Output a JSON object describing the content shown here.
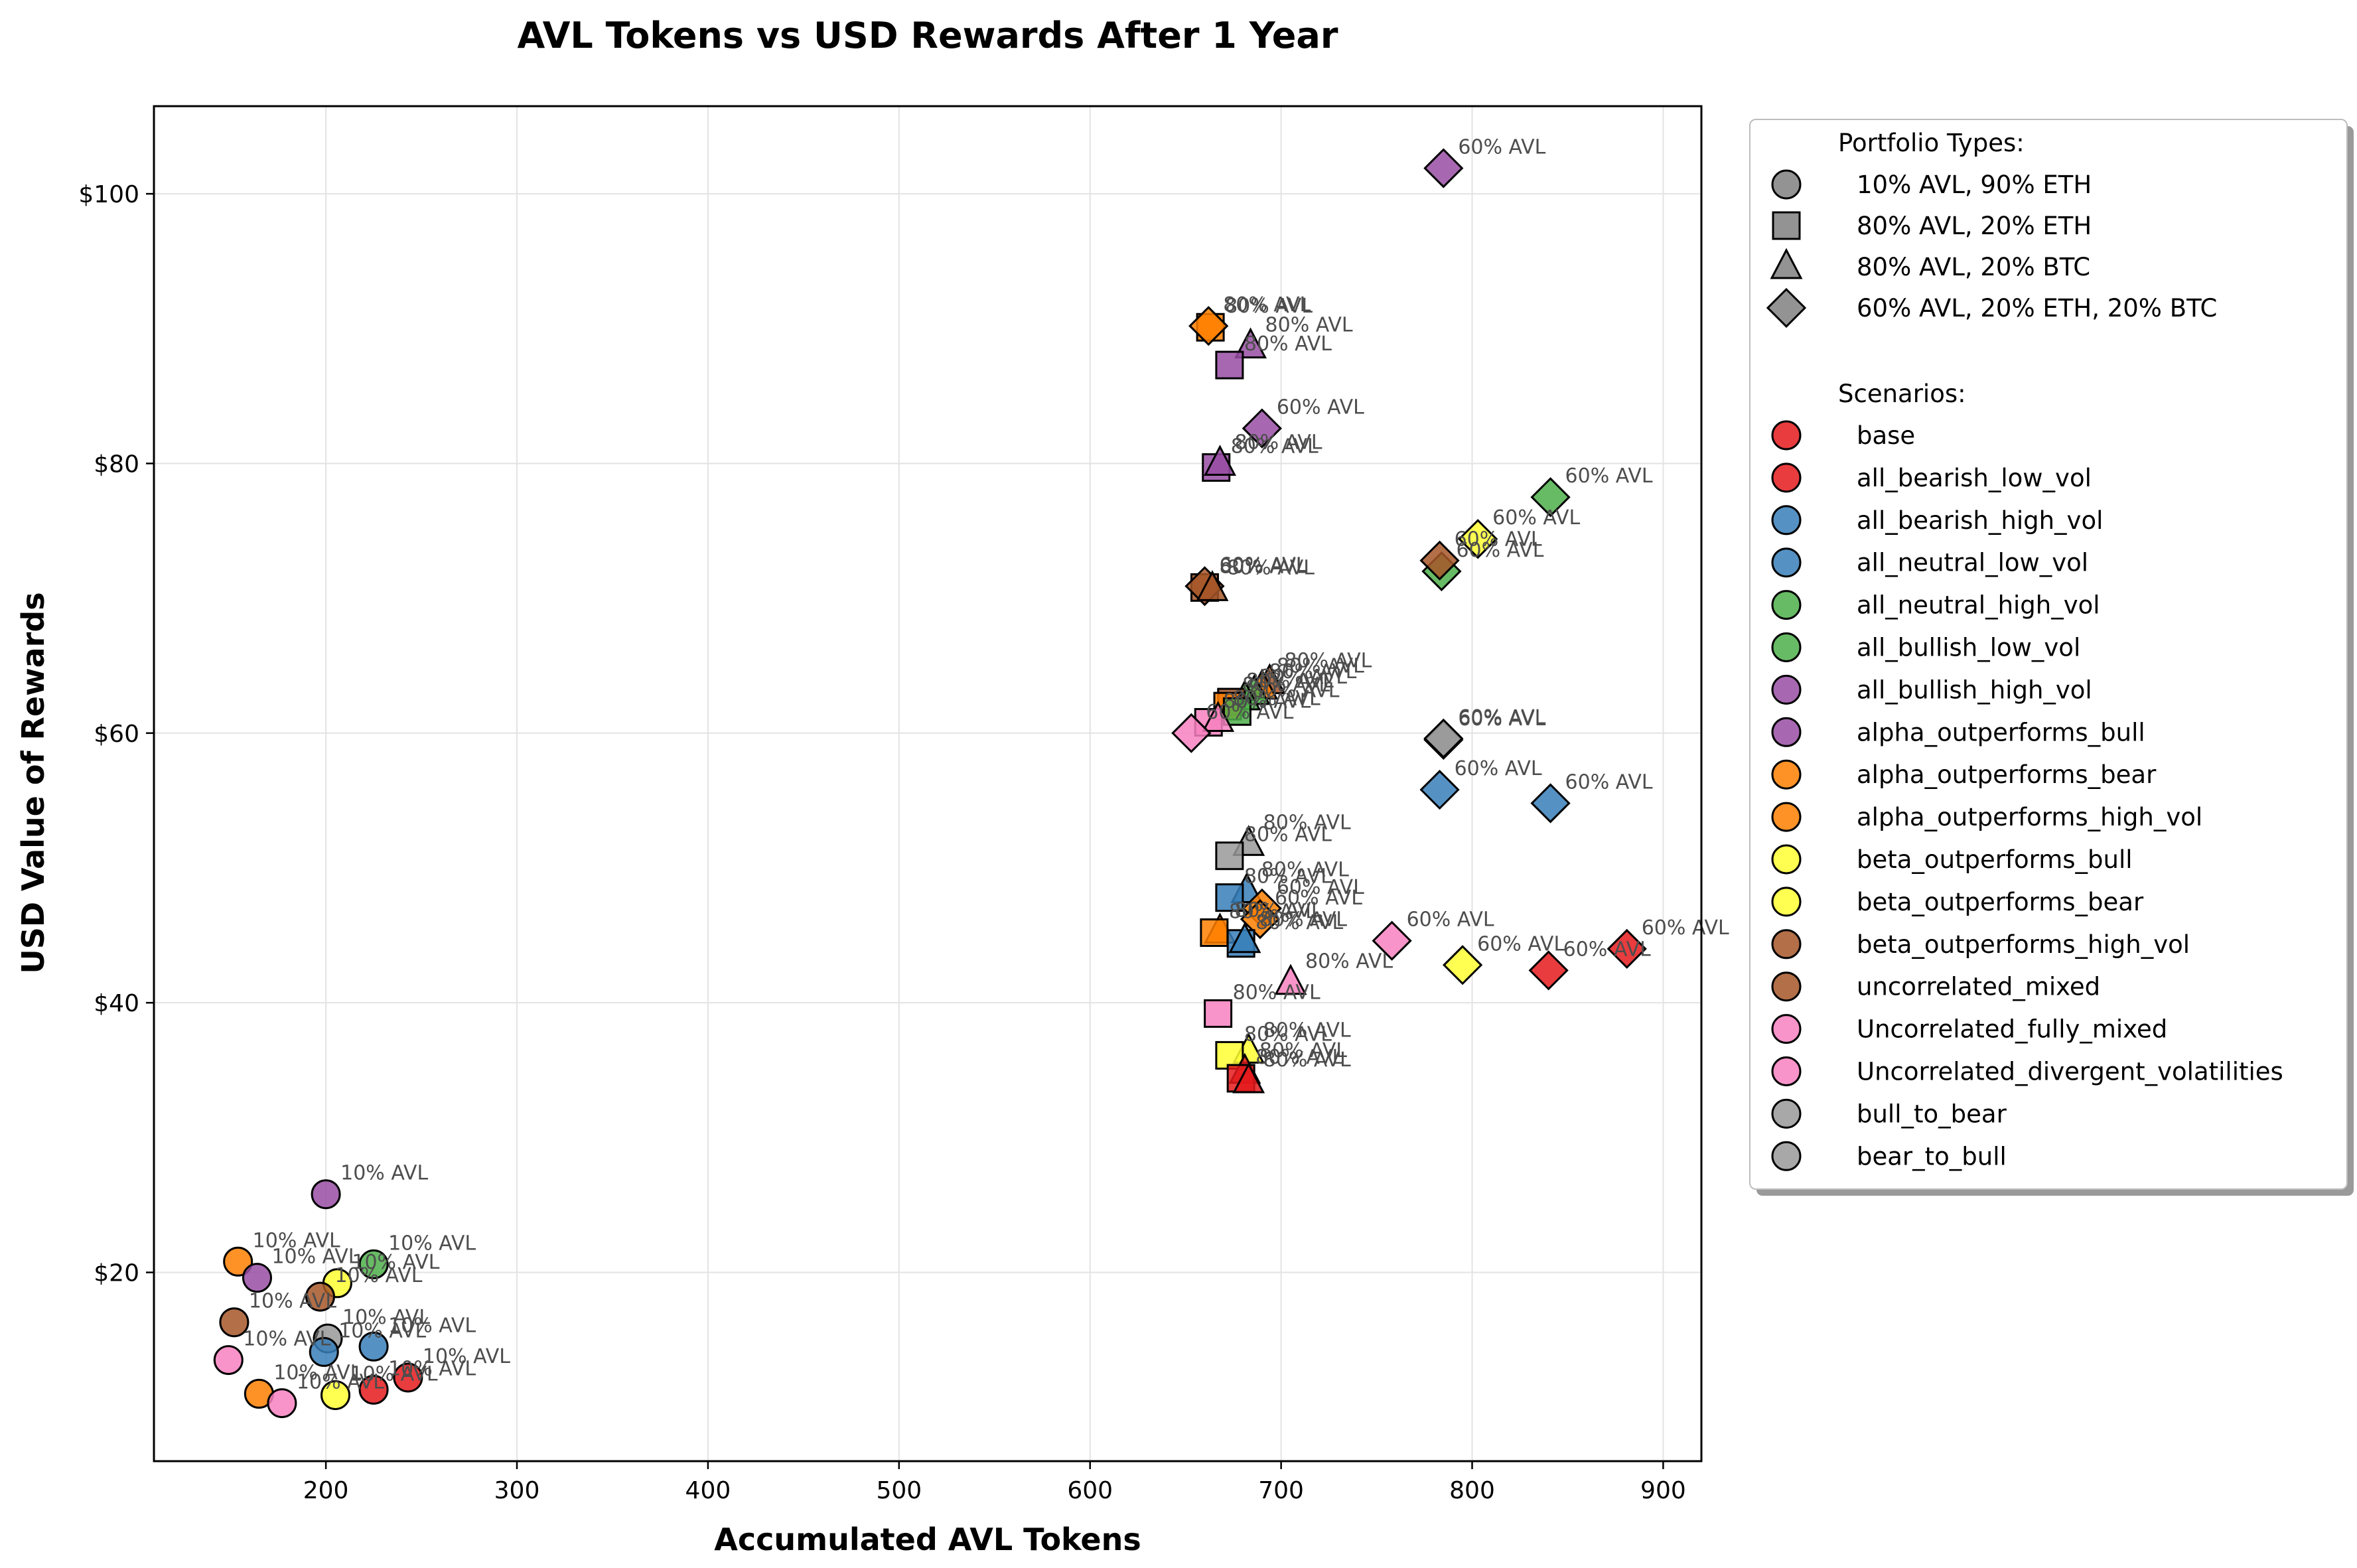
{
  "chart_data": {
    "type": "scatter",
    "title": "AVL Tokens vs USD Rewards After 1 Year",
    "xlabel": "Accumulated AVL Tokens",
    "ylabel": "USD Value of Rewards",
    "xlim": [
      110,
      920
    ],
    "ylim": [
      6,
      106.5
    ],
    "x_ticks": [
      200,
      300,
      400,
      500,
      600,
      700,
      800,
      900
    ],
    "y_ticks": [
      20,
      40,
      60,
      80,
      100
    ],
    "y_tick_prefix": "$",
    "grid": true,
    "legend_position": "outside-right",
    "legend": {
      "portfolio_title": "Portfolio Types:",
      "portfolios": [
        {
          "shape": "circle",
          "label": "10% AVL, 90% ETH"
        },
        {
          "shape": "square",
          "label": "80% AVL, 20% ETH"
        },
        {
          "shape": "triangle",
          "label": "80% AVL, 20% BTC"
        },
        {
          "shape": "diamond",
          "label": "60% AVL, 20% ETH, 20% BTC"
        }
      ],
      "scenario_title": "Scenarios:",
      "scenarios": [
        {
          "name": "base",
          "color": "#e41a1c"
        },
        {
          "name": "all_bearish_low_vol",
          "color": "#e41a1c"
        },
        {
          "name": "all_bearish_high_vol",
          "color": "#377eb8"
        },
        {
          "name": "all_neutral_low_vol",
          "color": "#377eb8"
        },
        {
          "name": "all_neutral_high_vol",
          "color": "#4daf4a"
        },
        {
          "name": "all_bullish_low_vol",
          "color": "#4daf4a"
        },
        {
          "name": "all_bullish_high_vol",
          "color": "#984ea3"
        },
        {
          "name": "alpha_outperforms_bull",
          "color": "#984ea3"
        },
        {
          "name": "alpha_outperforms_bear",
          "color": "#ff7f00"
        },
        {
          "name": "alpha_outperforms_high_vol",
          "color": "#ff7f00"
        },
        {
          "name": "beta_outperforms_bull",
          "color": "#ffff33"
        },
        {
          "name": "beta_outperforms_bear",
          "color": "#ffff33"
        },
        {
          "name": "beta_outperforms_high_vol",
          "color": "#a65628"
        },
        {
          "name": "uncorrelated_mixed",
          "color": "#a65628"
        },
        {
          "name": "Uncorrelated_fully_mixed",
          "color": "#f781bf"
        },
        {
          "name": "Uncorrelated_divergent_volatilities",
          "color": "#f781bf"
        },
        {
          "name": "bull_to_bear",
          "color": "#999999"
        },
        {
          "name": "bear_to_bull",
          "color": "#999999"
        }
      ]
    },
    "points": [
      {
        "x": 200,
        "y": 25.8,
        "shape": "circle",
        "color": "#984ea3",
        "label": "10% AVL"
      },
      {
        "x": 154,
        "y": 20.8,
        "shape": "circle",
        "color": "#ff7f00",
        "label": "10% AVL"
      },
      {
        "x": 164,
        "y": 19.6,
        "shape": "circle",
        "color": "#984ea3",
        "label": "10% AVL"
      },
      {
        "x": 225,
        "y": 20.6,
        "shape": "circle",
        "color": "#4daf4a",
        "label": "10% AVL"
      },
      {
        "x": 206,
        "y": 19.2,
        "shape": "circle",
        "color": "#ffff33",
        "label": "10% AVL"
      },
      {
        "x": 197,
        "y": 18.2,
        "shape": "circle",
        "color": "#a65628",
        "label": "10% AVL"
      },
      {
        "x": 152,
        "y": 16.3,
        "shape": "circle",
        "color": "#a65628",
        "label": "10% AVL"
      },
      {
        "x": 201,
        "y": 15.1,
        "shape": "circle",
        "color": "#999999",
        "label": "10% AVL"
      },
      {
        "x": 199,
        "y": 14.1,
        "shape": "circle",
        "color": "#377eb8",
        "label": "10% AVL"
      },
      {
        "x": 225,
        "y": 14.5,
        "shape": "circle",
        "color": "#377eb8",
        "label": "10% AVL"
      },
      {
        "x": 149,
        "y": 13.5,
        "shape": "circle",
        "color": "#f781bf",
        "label": "10% AVL"
      },
      {
        "x": 243,
        "y": 12.2,
        "shape": "circle",
        "color": "#e41a1c",
        "label": "10% AVL"
      },
      {
        "x": 225,
        "y": 11.3,
        "shape": "circle",
        "color": "#e41a1c",
        "label": "10% AVL"
      },
      {
        "x": 165,
        "y": 11.0,
        "shape": "circle",
        "color": "#ff7f00",
        "label": "10% AVL"
      },
      {
        "x": 205,
        "y": 10.9,
        "shape": "circle",
        "color": "#ffff33",
        "label": "10% AVL"
      },
      {
        "x": 177,
        "y": 10.3,
        "shape": "circle",
        "color": "#f781bf",
        "label": "10% AVL"
      },
      {
        "x": 785,
        "y": 101.9,
        "shape": "diamond",
        "color": "#984ea3",
        "label": "60% AVL"
      },
      {
        "x": 663,
        "y": 90.1,
        "shape": "square",
        "color": "#ff7f00",
        "label": "80% AVL"
      },
      {
        "x": 662,
        "y": 90.2,
        "shape": "diamond",
        "color": "#ff7f00",
        "label": "80% AVL"
      },
      {
        "x": 684,
        "y": 88.7,
        "shape": "triangle",
        "color": "#984ea3",
        "label": "80% AVL"
      },
      {
        "x": 673,
        "y": 87.3,
        "shape": "square",
        "color": "#984ea3",
        "label": "80% AVL"
      },
      {
        "x": 690,
        "y": 82.6,
        "shape": "diamond",
        "color": "#984ea3",
        "label": "60% AVL"
      },
      {
        "x": 666,
        "y": 79.7,
        "shape": "square",
        "color": "#984ea3",
        "label": "80% AVL"
      },
      {
        "x": 668,
        "y": 80.0,
        "shape": "triangle",
        "color": "#984ea3",
        "label": "80% AVL"
      },
      {
        "x": 841,
        "y": 77.5,
        "shape": "diamond",
        "color": "#4daf4a",
        "label": "60% AVL"
      },
      {
        "x": 803,
        "y": 74.4,
        "shape": "diamond",
        "color": "#ffff33",
        "label": "60% AVL"
      },
      {
        "x": 784,
        "y": 72.0,
        "shape": "diamond",
        "color": "#4daf4a",
        "label": "60% AVL"
      },
      {
        "x": 783,
        "y": 72.8,
        "shape": "diamond",
        "color": "#a65628",
        "label": "60% AVL"
      },
      {
        "x": 660,
        "y": 70.8,
        "shape": "square",
        "color": "#a65628",
        "label": "80% AVL"
      },
      {
        "x": 660,
        "y": 70.9,
        "shape": "diamond",
        "color": "#a65628",
        "label": "60% AVL"
      },
      {
        "x": 664,
        "y": 70.7,
        "shape": "triangle",
        "color": "#a65628",
        "label": "80% AVL"
      },
      {
        "x": 694,
        "y": 63.8,
        "shape": "triangle",
        "color": "#a65628",
        "label": "80% AVL"
      },
      {
        "x": 690,
        "y": 63.4,
        "shape": "triangle",
        "color": "#ff7f00",
        "label": "80% AVL"
      },
      {
        "x": 686,
        "y": 63.0,
        "shape": "triangle",
        "color": "#4daf4a",
        "label": "80% AVL"
      },
      {
        "x": 681,
        "y": 62.6,
        "shape": "triangle",
        "color": "#4daf4a",
        "label": "80% AVL"
      },
      {
        "x": 674,
        "y": 62.3,
        "shape": "square",
        "color": "#a65628",
        "label": "80% AVL"
      },
      {
        "x": 672,
        "y": 62.0,
        "shape": "square",
        "color": "#ff7f00",
        "label": "80% AVL"
      },
      {
        "x": 677,
        "y": 61.6,
        "shape": "square",
        "color": "#4daf4a",
        "label": "80% AVL"
      },
      {
        "x": 662,
        "y": 60.8,
        "shape": "square",
        "color": "#f781bf",
        "label": "80% AVL"
      },
      {
        "x": 667,
        "y": 61.0,
        "shape": "triangle",
        "color": "#f781bf",
        "label": "80% AVL"
      },
      {
        "x": 653,
        "y": 60.0,
        "shape": "diamond",
        "color": "#f781bf",
        "label": "60% AVL"
      },
      {
        "x": 785,
        "y": 59.5,
        "shape": "diamond",
        "color": "#999999",
        "label": "60% AVL"
      },
      {
        "x": 785,
        "y": 59.6,
        "shape": "diamond",
        "color": "#999999",
        "label": "60% AVL"
      },
      {
        "x": 783,
        "y": 55.8,
        "shape": "diamond",
        "color": "#377eb8",
        "label": "60% AVL"
      },
      {
        "x": 841,
        "y": 54.8,
        "shape": "diamond",
        "color": "#377eb8",
        "label": "60% AVL"
      },
      {
        "x": 683,
        "y": 51.8,
        "shape": "triangle",
        "color": "#999999",
        "label": "80% AVL"
      },
      {
        "x": 673,
        "y": 50.9,
        "shape": "square",
        "color": "#999999",
        "label": "80% AVL"
      },
      {
        "x": 682,
        "y": 48.3,
        "shape": "triangle",
        "color": "#377eb8",
        "label": "80% AVL"
      },
      {
        "x": 673,
        "y": 47.8,
        "shape": "square",
        "color": "#377eb8",
        "label": "80% AVL"
      },
      {
        "x": 690,
        "y": 47.0,
        "shape": "diamond",
        "color": "#ff7f00",
        "label": "60% AVL"
      },
      {
        "x": 689,
        "y": 46.2,
        "shape": "diamond",
        "color": "#ff7f00",
        "label": "60% AVL"
      },
      {
        "x": 668,
        "y": 45.3,
        "shape": "triangle",
        "color": "#ff7f00",
        "label": "80% AVL"
      },
      {
        "x": 665,
        "y": 45.2,
        "shape": "square",
        "color": "#ff7f00",
        "label": "80% AVL"
      },
      {
        "x": 679,
        "y": 44.4,
        "shape": "square",
        "color": "#377eb8",
        "label": "80% AVL"
      },
      {
        "x": 681,
        "y": 44.6,
        "shape": "triangle",
        "color": "#377eb8",
        "label": "80% AVL"
      },
      {
        "x": 758,
        "y": 44.6,
        "shape": "diamond",
        "color": "#f781bf",
        "label": "60% AVL"
      },
      {
        "x": 881,
        "y": 44.0,
        "shape": "diamond",
        "color": "#e41a1c",
        "label": "60% AVL"
      },
      {
        "x": 795,
        "y": 42.8,
        "shape": "diamond",
        "color": "#ffff33",
        "label": "60% AVL"
      },
      {
        "x": 840,
        "y": 42.4,
        "shape": "diamond",
        "color": "#e41a1c",
        "label": "60% AVL"
      },
      {
        "x": 705,
        "y": 41.5,
        "shape": "triangle",
        "color": "#f781bf",
        "label": "80% AVL"
      },
      {
        "x": 667,
        "y": 39.2,
        "shape": "square",
        "color": "#f781bf",
        "label": "80% AVL"
      },
      {
        "x": 683,
        "y": 36.4,
        "shape": "triangle",
        "color": "#ffff33",
        "label": "80% AVL"
      },
      {
        "x": 673,
        "y": 36.1,
        "shape": "square",
        "color": "#ffff33",
        "label": "80% AVL"
      },
      {
        "x": 681,
        "y": 34.9,
        "shape": "triangle",
        "color": "#e41a1c",
        "label": "80% AVL"
      },
      {
        "x": 679,
        "y": 34.4,
        "shape": "square",
        "color": "#e41a1c",
        "label": "80% AVL"
      },
      {
        "x": 683,
        "y": 34.2,
        "shape": "triangle",
        "color": "#e41a1c",
        "label": "80% AVL"
      }
    ]
  }
}
